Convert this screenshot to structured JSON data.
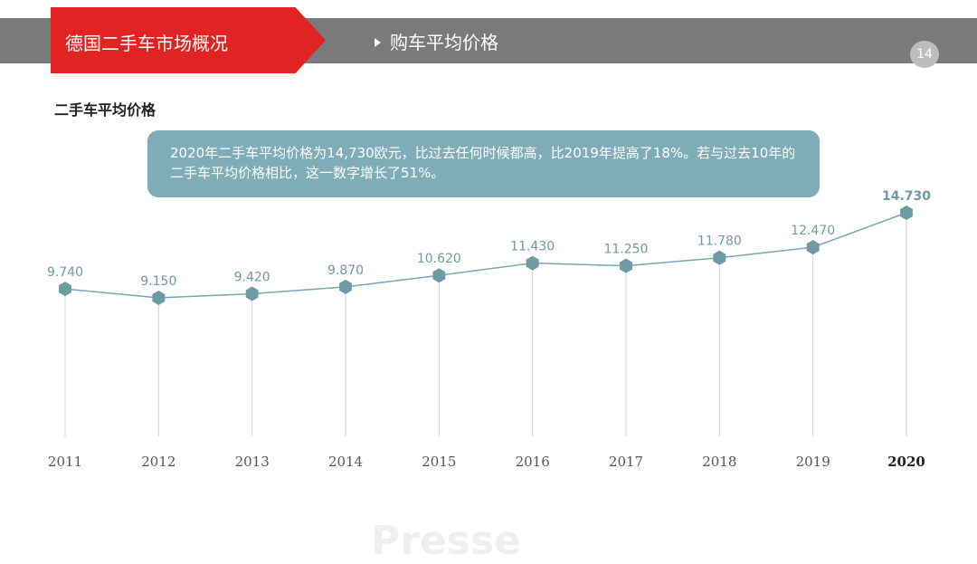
{
  "header": {
    "section": "德国二手车市场概况",
    "subtitle": "购车平均价格",
    "page_number": "14"
  },
  "slide_title": "二手车平均价格",
  "callout_text": "2020年二手车平均价格为14,730欧元，比过去任何时候都高，比2019年提高了18%。若与过去10年的二手车平均价格相比，这一数字增长了51%。",
  "watermark": "Presse",
  "colors": {
    "header_bar": "#7a7a7a",
    "header_accent": "#e02424",
    "series": "#6e9aa4",
    "callout": "#7eadb7"
  },
  "chart_data": {
    "type": "line",
    "title": "",
    "xlabel": "",
    "ylabel": "",
    "grid": false,
    "x": [
      "2011",
      "2012",
      "2013",
      "2014",
      "2015",
      "2016",
      "2017",
      "2018",
      "2019",
      "2020"
    ],
    "series": [
      {
        "values": [
          9740,
          9150,
          9420,
          9870,
          10620,
          11430,
          11250,
          11780,
          12470,
          14730
        ]
      }
    ],
    "data_labels": [
      "9.740",
      "9.150",
      "9.420",
      "9.870",
      "10.620",
      "11.430",
      "11.250",
      "11.780",
      "12.470",
      "14.730"
    ],
    "highlight": "2020",
    "marker": "hexagon"
  }
}
